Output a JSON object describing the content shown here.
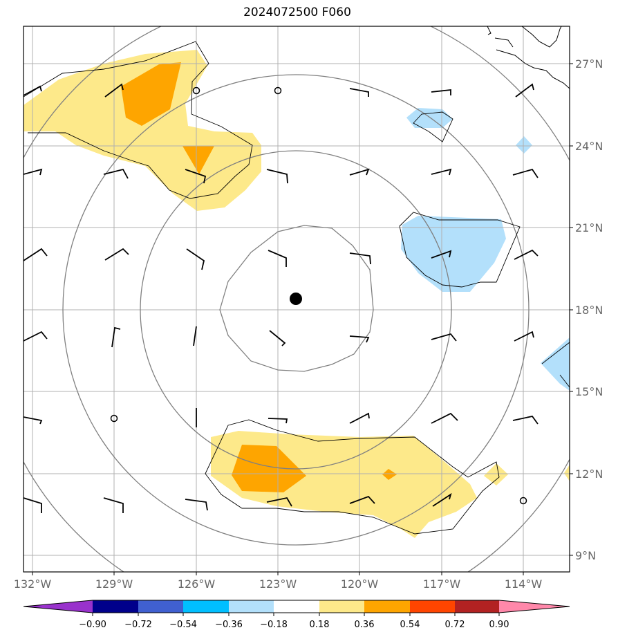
{
  "title": "2024072500 F060",
  "map": {
    "lon_labels": [
      "132°W",
      "129°W",
      "126°W",
      "123°W",
      "120°W",
      "117°W",
      "114°W"
    ],
    "lat_labels": [
      "27°N",
      "24°N",
      "21°N",
      "18°N",
      "15°N",
      "12°N",
      "9°N"
    ],
    "center_marker": "storm-center-dot",
    "colors": {
      "light_yellow": "#fde98a",
      "orange": "#fea500",
      "light_blue": "#b3e0fb",
      "grid": "#b0b0b0",
      "range_rings": "#808080"
    }
  },
  "colorbar": {
    "tick_labels": [
      "−0.90",
      "−0.72",
      "−0.54",
      "−0.36",
      "−0.18",
      "0.18",
      "0.36",
      "0.54",
      "0.72",
      "0.90"
    ],
    "colors": [
      "#9932cc",
      "#00008b",
      "#4060d0",
      "#00bfff",
      "#b3e0fb",
      "#ffffff",
      "#fde98a",
      "#fea500",
      "#ff4500",
      "#b22222",
      "#ff88aa"
    ]
  }
}
